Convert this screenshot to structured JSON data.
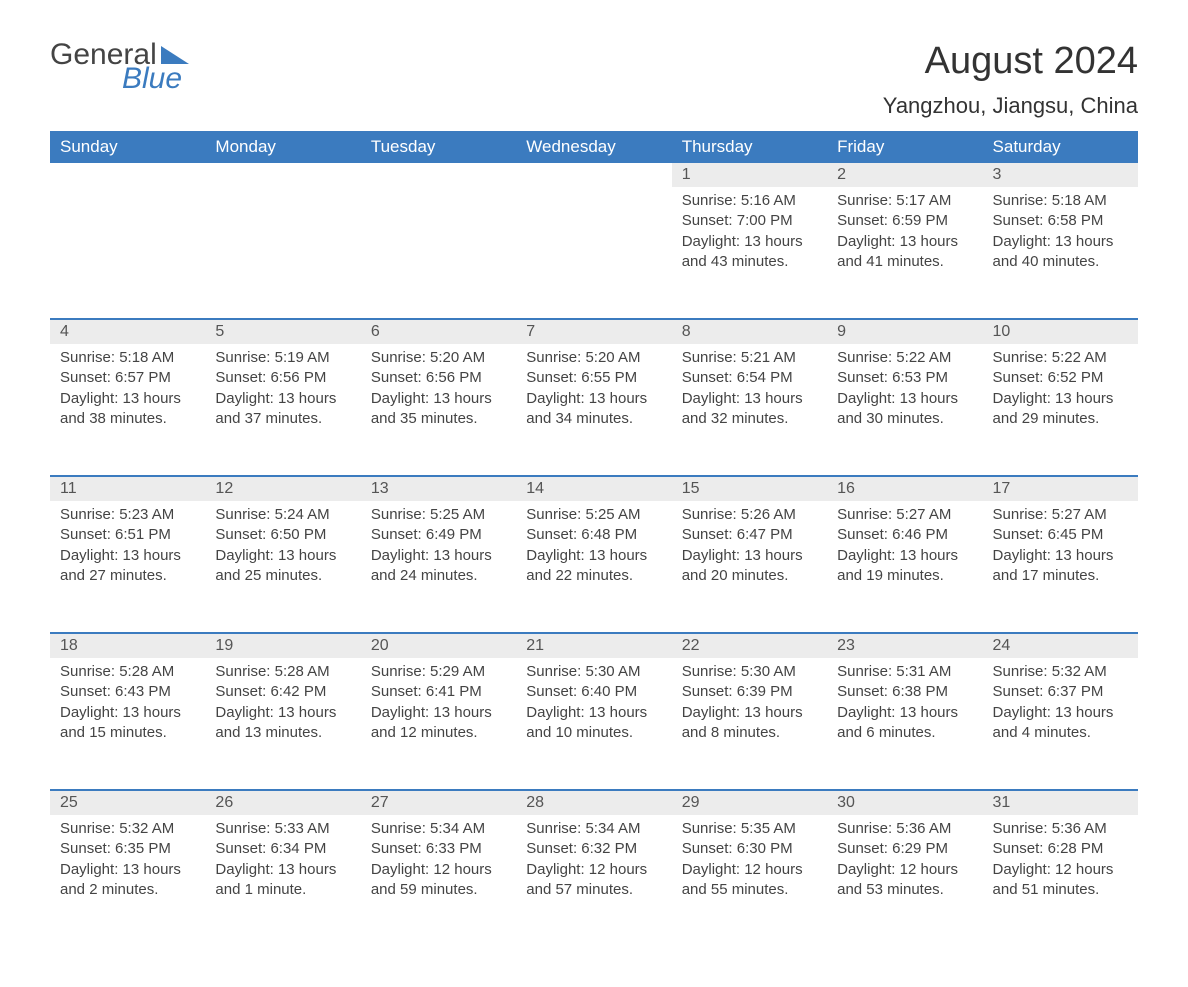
{
  "logo": {
    "general": "General",
    "blue": "Blue",
    "triangle_color": "#3b7bbf"
  },
  "title": "August 2024",
  "location": "Yangzhou, Jiangsu, China",
  "colors": {
    "header_bg": "#3b7bbf",
    "header_text": "#ffffff",
    "daynum_bg": "#ececec",
    "row_border": "#3b7bbf",
    "body_text": "#444444"
  },
  "weekdays": [
    "Sunday",
    "Monday",
    "Tuesday",
    "Wednesday",
    "Thursday",
    "Friday",
    "Saturday"
  ],
  "weeks": [
    [
      null,
      null,
      null,
      null,
      {
        "n": "1",
        "sr": "5:16 AM",
        "ss": "7:00 PM",
        "dl": "13 hours and 43 minutes."
      },
      {
        "n": "2",
        "sr": "5:17 AM",
        "ss": "6:59 PM",
        "dl": "13 hours and 41 minutes."
      },
      {
        "n": "3",
        "sr": "5:18 AM",
        "ss": "6:58 PM",
        "dl": "13 hours and 40 minutes."
      }
    ],
    [
      {
        "n": "4",
        "sr": "5:18 AM",
        "ss": "6:57 PM",
        "dl": "13 hours and 38 minutes."
      },
      {
        "n": "5",
        "sr": "5:19 AM",
        "ss": "6:56 PM",
        "dl": "13 hours and 37 minutes."
      },
      {
        "n": "6",
        "sr": "5:20 AM",
        "ss": "6:56 PM",
        "dl": "13 hours and 35 minutes."
      },
      {
        "n": "7",
        "sr": "5:20 AM",
        "ss": "6:55 PM",
        "dl": "13 hours and 34 minutes."
      },
      {
        "n": "8",
        "sr": "5:21 AM",
        "ss": "6:54 PM",
        "dl": "13 hours and 32 minutes."
      },
      {
        "n": "9",
        "sr": "5:22 AM",
        "ss": "6:53 PM",
        "dl": "13 hours and 30 minutes."
      },
      {
        "n": "10",
        "sr": "5:22 AM",
        "ss": "6:52 PM",
        "dl": "13 hours and 29 minutes."
      }
    ],
    [
      {
        "n": "11",
        "sr": "5:23 AM",
        "ss": "6:51 PM",
        "dl": "13 hours and 27 minutes."
      },
      {
        "n": "12",
        "sr": "5:24 AM",
        "ss": "6:50 PM",
        "dl": "13 hours and 25 minutes."
      },
      {
        "n": "13",
        "sr": "5:25 AM",
        "ss": "6:49 PM",
        "dl": "13 hours and 24 minutes."
      },
      {
        "n": "14",
        "sr": "5:25 AM",
        "ss": "6:48 PM",
        "dl": "13 hours and 22 minutes."
      },
      {
        "n": "15",
        "sr": "5:26 AM",
        "ss": "6:47 PM",
        "dl": "13 hours and 20 minutes."
      },
      {
        "n": "16",
        "sr": "5:27 AM",
        "ss": "6:46 PM",
        "dl": "13 hours and 19 minutes."
      },
      {
        "n": "17",
        "sr": "5:27 AM",
        "ss": "6:45 PM",
        "dl": "13 hours and 17 minutes."
      }
    ],
    [
      {
        "n": "18",
        "sr": "5:28 AM",
        "ss": "6:43 PM",
        "dl": "13 hours and 15 minutes."
      },
      {
        "n": "19",
        "sr": "5:28 AM",
        "ss": "6:42 PM",
        "dl": "13 hours and 13 minutes."
      },
      {
        "n": "20",
        "sr": "5:29 AM",
        "ss": "6:41 PM",
        "dl": "13 hours and 12 minutes."
      },
      {
        "n": "21",
        "sr": "5:30 AM",
        "ss": "6:40 PM",
        "dl": "13 hours and 10 minutes."
      },
      {
        "n": "22",
        "sr": "5:30 AM",
        "ss": "6:39 PM",
        "dl": "13 hours and 8 minutes."
      },
      {
        "n": "23",
        "sr": "5:31 AM",
        "ss": "6:38 PM",
        "dl": "13 hours and 6 minutes."
      },
      {
        "n": "24",
        "sr": "5:32 AM",
        "ss": "6:37 PM",
        "dl": "13 hours and 4 minutes."
      }
    ],
    [
      {
        "n": "25",
        "sr": "5:32 AM",
        "ss": "6:35 PM",
        "dl": "13 hours and 2 minutes."
      },
      {
        "n": "26",
        "sr": "5:33 AM",
        "ss": "6:34 PM",
        "dl": "13 hours and 1 minute."
      },
      {
        "n": "27",
        "sr": "5:34 AM",
        "ss": "6:33 PM",
        "dl": "12 hours and 59 minutes."
      },
      {
        "n": "28",
        "sr": "5:34 AM",
        "ss": "6:32 PM",
        "dl": "12 hours and 57 minutes."
      },
      {
        "n": "29",
        "sr": "5:35 AM",
        "ss": "6:30 PM",
        "dl": "12 hours and 55 minutes."
      },
      {
        "n": "30",
        "sr": "5:36 AM",
        "ss": "6:29 PM",
        "dl": "12 hours and 53 minutes."
      },
      {
        "n": "31",
        "sr": "5:36 AM",
        "ss": "6:28 PM",
        "dl": "12 hours and 51 minutes."
      }
    ]
  ],
  "labels": {
    "sunrise": "Sunrise: ",
    "sunset": "Sunset: ",
    "daylight": "Daylight: "
  }
}
